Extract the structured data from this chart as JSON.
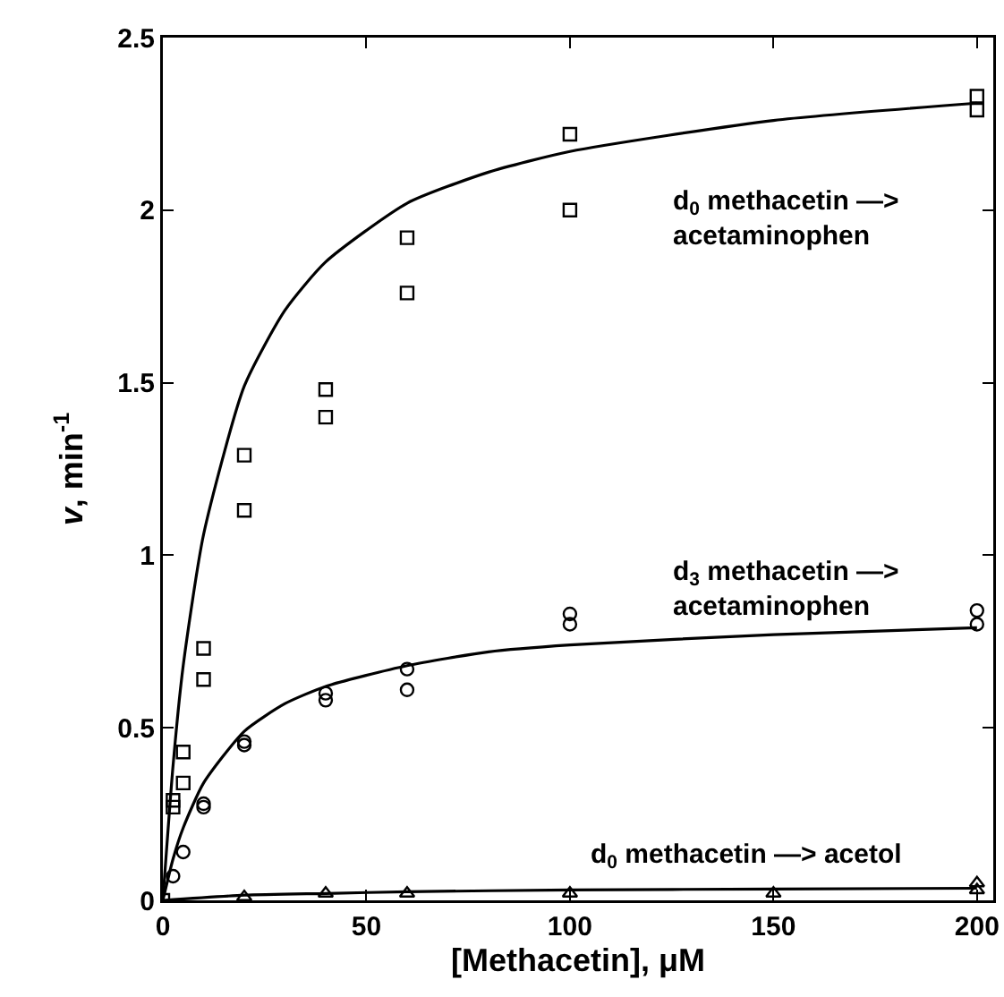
{
  "chart_data": {
    "type": "scatter",
    "xlabel": "[Methacetin], μM",
    "ylabel": "v, min$^{-1}$",
    "xlim": [
      0,
      204
    ],
    "xticks": [
      0,
      50,
      100,
      150,
      200
    ],
    "ylim": [
      0,
      2.5
    ],
    "yticks": [
      0,
      0.5,
      1,
      1.5,
      2,
      2.5
    ],
    "grid": false,
    "series": [
      {
        "marker": "square",
        "color": "#000000",
        "x": [
          0,
          2.5,
          2.5,
          5,
          5,
          10,
          10,
          20,
          20,
          40,
          40,
          60,
          60,
          100,
          100,
          200,
          200
        ],
        "values": [
          0,
          0.29,
          0.27,
          0.43,
          0.34,
          0.73,
          0.64,
          1.29,
          1.13,
          1.48,
          1.4,
          1.92,
          1.76,
          2.22,
          2.0,
          2.33,
          2.29
        ]
      },
      {
        "marker": "circle",
        "color": "#000000",
        "x": [
          2.5,
          5,
          10,
          10,
          20,
          20,
          40,
          40,
          60,
          60,
          100,
          100,
          200,
          200
        ],
        "values": [
          0.07,
          0.14,
          0.28,
          0.27,
          0.46,
          0.45,
          0.6,
          0.58,
          0.67,
          0.61,
          0.83,
          0.8,
          0.84,
          0.8
        ]
      },
      {
        "marker": "triangle",
        "color": "#000000",
        "x": [
          20,
          40,
          60,
          100,
          150,
          200,
          200
        ],
        "values": [
          0.01,
          0.02,
          0.02,
          0.02,
          0.02,
          0.05,
          0.03
        ]
      },
      {
        "type": "line",
        "marker": "none",
        "line_style": "solid",
        "color": "#000000",
        "x": [
          0,
          2.5,
          5,
          10,
          20,
          30,
          40,
          60,
          80,
          100,
          150,
          200
        ],
        "values": [
          0,
          0.39,
          0.68,
          1.06,
          1.49,
          1.71,
          1.85,
          2.02,
          2.11,
          2.17,
          2.26,
          2.31
        ]
      },
      {
        "type": "line",
        "marker": "none",
        "line_style": "solid",
        "color": "#000000",
        "x": [
          0,
          2.5,
          5,
          10,
          20,
          30,
          40,
          60,
          80,
          100,
          150,
          200
        ],
        "values": [
          0,
          0.12,
          0.21,
          0.34,
          0.49,
          0.57,
          0.62,
          0.68,
          0.72,
          0.74,
          0.77,
          0.79
        ]
      },
      {
        "type": "line",
        "marker": "none",
        "line_style": "solid",
        "color": "#000000",
        "x": [
          0,
          20,
          40,
          60,
          100,
          150,
          200
        ],
        "values": [
          0,
          0.015,
          0.02,
          0.025,
          0.03,
          0.033,
          0.035
        ]
      }
    ],
    "annotations": [
      "d$_{0}$ methacetin —>\nacetaminophen",
      "d$_{3}$ methacetin —>\nacetaminophen",
      "d$_{0}$ methacetin —> acetol"
    ]
  }
}
